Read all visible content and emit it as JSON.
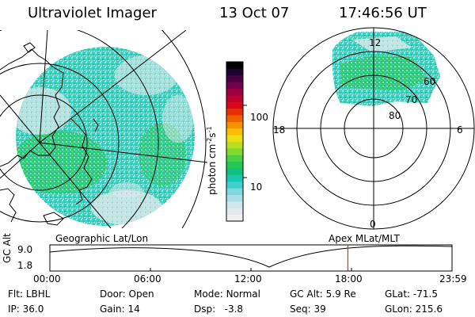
{
  "header": {
    "title": "Ultraviolet Imager",
    "date": "13 Oct 07",
    "time": "17:46:56 UT"
  },
  "panels": {
    "left_label": "Geographic Lat/Lon",
    "right_label": "Apex MLat/MLT"
  },
  "colorbar": {
    "unit_label": "photon cm",
    "unit_exp1": "-2",
    "unit_mid": "s",
    "unit_exp2": "-1",
    "ticks": [
      {
        "value": 100,
        "label": "100"
      },
      {
        "value": 10,
        "label": "10"
      }
    ],
    "range": [
      2.5,
      400
    ],
    "colors": [
      "#f0f0f0",
      "#e2e8ec",
      "#cfe8ee",
      "#a8dfe8",
      "#7ed8e0",
      "#40d0d0",
      "#18c8b0",
      "#10c080",
      "#20c850",
      "#48d040",
      "#80d830",
      "#b8e020",
      "#e8e010",
      "#f8c000",
      "#f89000",
      "#f06000",
      "#e83000",
      "#d80818",
      "#c00030",
      "#980040",
      "#700050",
      "#480040",
      "#200030",
      "#000000"
    ]
  },
  "polar": {
    "lat_labels": [
      "60",
      "70",
      "80"
    ],
    "mlt_labels": {
      "top": "12",
      "left": "18",
      "right": "6",
      "bottom": "0"
    }
  },
  "gc_plot": {
    "ylabel": "GC Alt",
    "ymax_label": "9.0",
    "ymin_label": "1.8",
    "x_labels": [
      "00:00",
      "06:00",
      "12:00",
      "18:00",
      "23:59"
    ],
    "current_time_hours": 17.78
  },
  "info": {
    "flt_label": "Flt:",
    "flt_value": "LBHL",
    "ip_label": "IP:",
    "ip_value": "36.0",
    "door_label": "Door:",
    "door_value": "Open",
    "gain_label": "Gain:",
    "gain_value": "14",
    "mode_label": "Mode:",
    "mode_value": "Normal",
    "dsp_label": "Dsp:",
    "dsp_value": "-3.8",
    "gcalt_label": "GC Alt:",
    "gcalt_value": "5.9 Re",
    "seq_label": "Seq:",
    "seq_value": "39",
    "glat_label": "GLat:",
    "glat_value": "-71.5",
    "glon_label": "GLon:",
    "glon_value": "215.6"
  }
}
